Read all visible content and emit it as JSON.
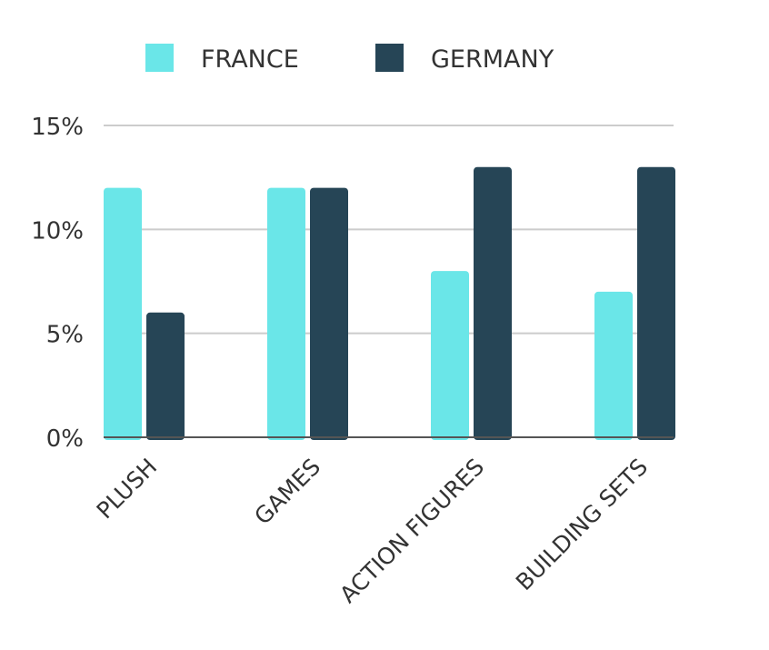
{
  "chart_data": {
    "type": "bar",
    "categories": [
      "PLUSH",
      "GAMES",
      "ACTION FIGURES",
      "BUILDING SETS"
    ],
    "series": [
      {
        "name": "FRANCE",
        "color": "#6ae6e8",
        "values": [
          12,
          12,
          8,
          7
        ]
      },
      {
        "name": "GERMANY",
        "color": "#264556",
        "values": [
          6,
          12,
          13,
          13
        ]
      }
    ],
    "y_ticks": [
      0,
      5,
      10,
      15
    ],
    "y_tick_labels": [
      "0%",
      "5%",
      "10%",
      "15%"
    ],
    "ylim": [
      0,
      15
    ],
    "grid": true,
    "grid_color": "#cccccc",
    "axis_color": "#555555",
    "legend_position": "top"
  }
}
